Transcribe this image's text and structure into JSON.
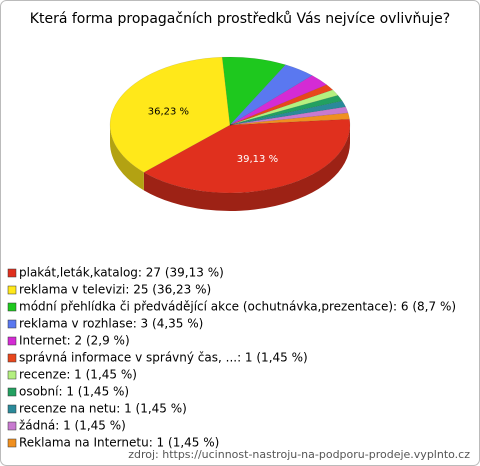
{
  "chart_data": {
    "type": "pie",
    "title": "Která forma propagačních prostředků Vás nejvíce ovlivňuje?",
    "categories": [
      "plakát,leták,katalog: 27 (39,13 %)",
      "reklama v televizi: 25 (36,23 %)",
      "módní přehlídka či předvádějící akce (ochutnávka,prezentace): 6 (8,7 %)",
      "reklama v rozhlase: 3 (4,35 %)",
      "Internet: 2 (2,9 %)",
      "správná informace v správný čas, ...: 1 (1,45 %)",
      "recenze: 1 (1,45 %)",
      "osobní: 1 (1,45 %)",
      "recenze na netu: 1 (1,45 %)",
      "žádná: 1 (1,45 %)",
      "Reklama na Internetu: 1 (1,45 %)"
    ],
    "values": [
      27,
      25,
      6,
      3,
      2,
      1,
      1,
      1,
      1,
      1,
      1
    ],
    "value_labels": [
      "39,13 %",
      "36,23 %",
      null,
      null,
      null,
      null,
      null,
      null,
      null,
      null,
      null
    ],
    "colors": [
      "#e0301e",
      "#ffe81a",
      "#1ec81e",
      "#5a78f0",
      "#d42bd4",
      "#e8461c",
      "#b4f080",
      "#22a060",
      "#2a8a9a",
      "#c87ad0",
      "#f09020"
    ],
    "source": "zdroj: https://ucinnost-nastroju-na-podporu-prodeje.vyplnto.cz"
  }
}
